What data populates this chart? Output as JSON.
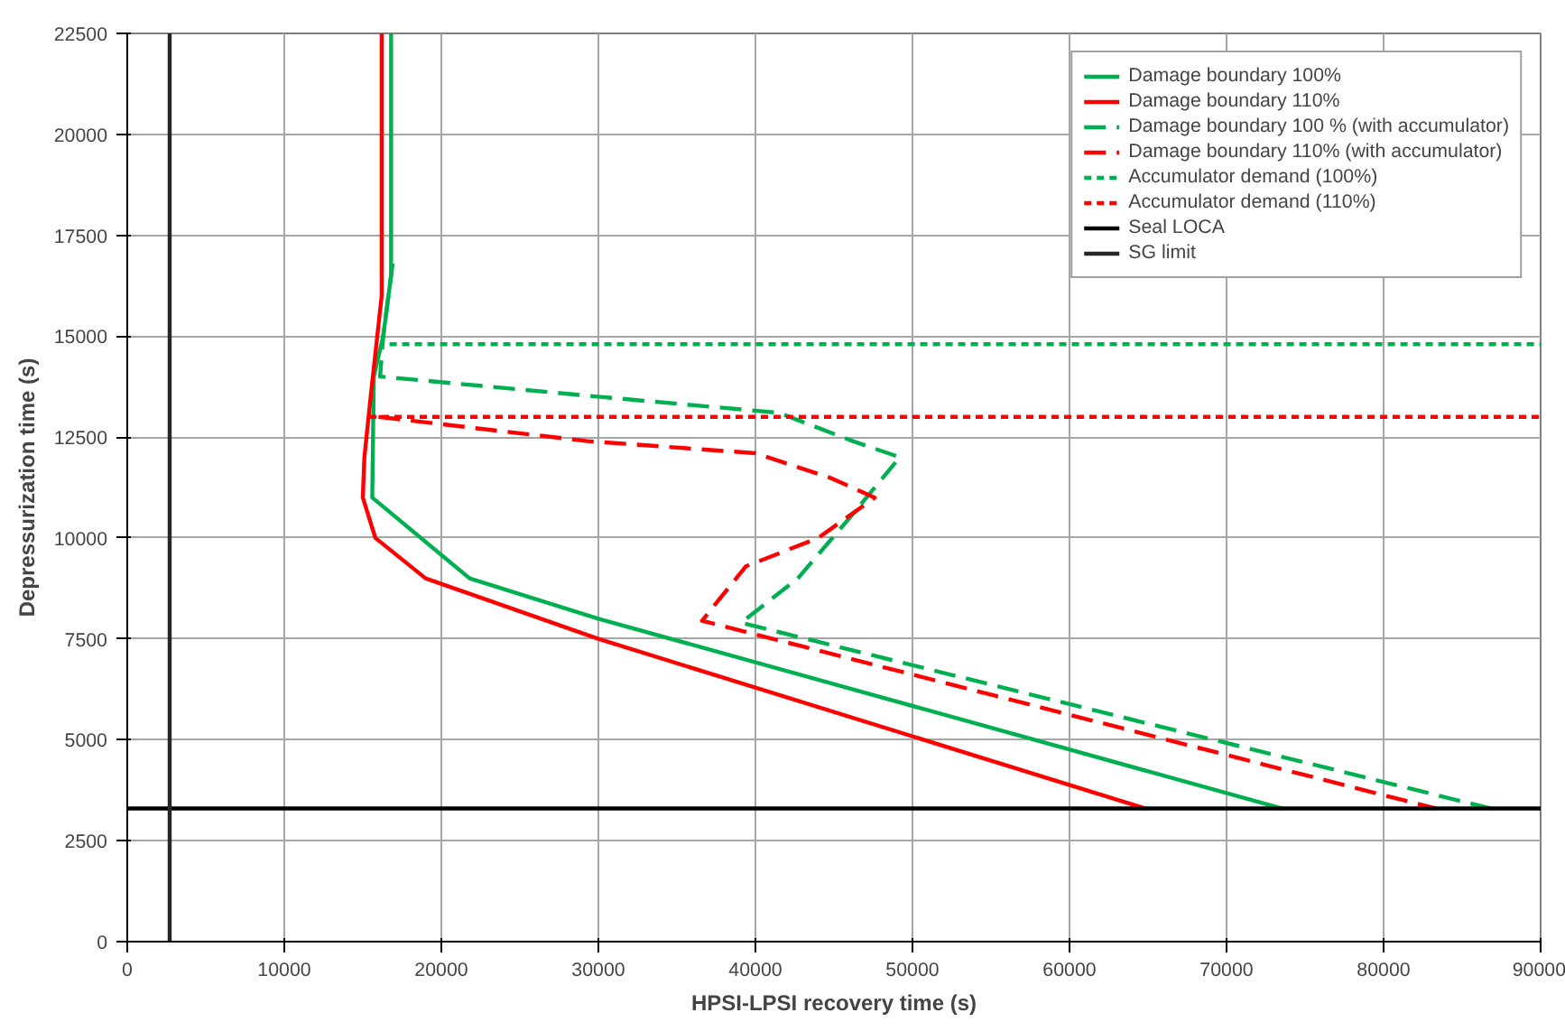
{
  "chart_data": {
    "type": "line",
    "xlabel": "HPSI-LPSI recovery time (s)",
    "ylabel": "Depressurization time (s)",
    "xlim": [
      0,
      90000
    ],
    "ylim": [
      0,
      22500
    ],
    "xticks": [
      0,
      10000,
      20000,
      30000,
      40000,
      50000,
      60000,
      70000,
      80000,
      90000
    ],
    "yticks": [
      0,
      2500,
      5000,
      7500,
      10000,
      12500,
      15000,
      17500,
      20000,
      22500
    ],
    "grid": true,
    "legend": "top right",
    "marker": "none",
    "series": [
      {
        "name": "Damage boundary 100%",
        "color": "#00b050",
        "line_style": "solid",
        "x": [
          16800,
          16800,
          16300,
          15700,
          15600,
          21800,
          30000,
          73500
        ],
        "values": [
          22500,
          16500,
          15000,
          14000,
          11000,
          9000,
          8000,
          3300
        ]
      },
      {
        "name": "Damage boundary 110%",
        "color": "#ff0000",
        "line_style": "solid",
        "x": [
          16200,
          16200,
          15500,
          15100,
          15000,
          15800,
          19000,
          30000,
          64800
        ],
        "values": [
          22500,
          16000,
          13500,
          12000,
          11000,
          10000,
          9000,
          7500,
          3300
        ]
      },
      {
        "name": "Damage boundary 100 % (with accumulator)",
        "color": "#00b050",
        "line_style": "dashed",
        "x": [
          16900,
          16300,
          16100,
          30000,
          41500,
          46200,
          49200,
          46000,
          42700,
          39100,
          86800
        ],
        "values": [
          16800,
          15000,
          14000,
          13500,
          13100,
          12400,
          12000,
          10500,
          9000,
          7900,
          3300
        ]
      },
      {
        "name": "Damage boundary 110% (with accumulator)",
        "color": "#ff0000",
        "line_style": "dashed",
        "x": [
          16000,
          29300,
          40000,
          44700,
          47600,
          44000,
          39400,
          36600,
          83300
        ],
        "values": [
          13000,
          12400,
          12100,
          11500,
          11000,
          10000,
          9300,
          7950,
          3300
        ]
      },
      {
        "name": "Accumulator demand (100%)",
        "color": "#00b050",
        "line_style": "dotted",
        "x": [
          16700,
          90000
        ],
        "values": [
          14800,
          14800
        ]
      },
      {
        "name": "Accumulator demand (110%)",
        "color": "#ff0000",
        "line_style": "dotted",
        "x": [
          15400,
          90000
        ],
        "values": [
          13000,
          13000
        ]
      },
      {
        "name": "Seal LOCA",
        "color": "#000000",
        "line_style": "solid",
        "x": [
          0,
          90000
        ],
        "values": [
          3300,
          3300
        ]
      },
      {
        "name": "SG limit",
        "color": "#262626",
        "line_style": "solid",
        "x": [
          2700,
          2700
        ],
        "values": [
          0,
          22500
        ]
      }
    ]
  }
}
